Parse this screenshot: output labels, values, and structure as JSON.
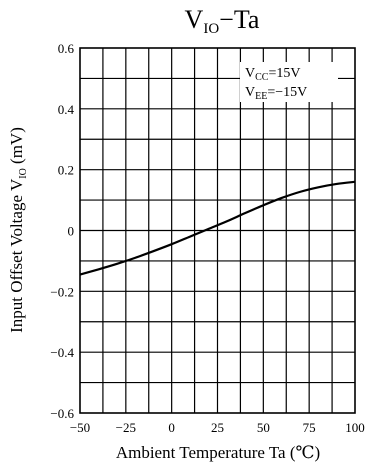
{
  "chart_data": {
    "type": "line",
    "title": {
      "main": "V",
      "sub": "IO",
      "rest": "−Ta"
    },
    "xlabel": "Ambient Temperature  Ta  (℃)",
    "ylabel": {
      "main": "Input Offset Voltage  V",
      "sub": "IO",
      "rest": "  (mV)"
    },
    "xlim": [
      -50,
      100
    ],
    "ylim": [
      -0.6,
      0.6
    ],
    "x_ticks": [
      -50,
      -25,
      0,
      25,
      50,
      75,
      100
    ],
    "x_tick_labels": [
      "−50",
      "−25",
      "0",
      "25",
      "50",
      "75",
      "100"
    ],
    "y_ticks": [
      0.6,
      0.4,
      0.2,
      0,
      -0.2,
      -0.4,
      -0.6
    ],
    "y_tick_labels": [
      "0.6",
      "0.4",
      "0.2",
      "0",
      "−0.2",
      "−0.4",
      "−0.6"
    ],
    "grid": true,
    "conditions": [
      {
        "main": "V",
        "sub": "CC",
        "rest": "=15V"
      },
      {
        "main": "V",
        "sub": "EE",
        "rest": "=−15V"
      }
    ],
    "series": [
      {
        "x": [
          -50,
          -40,
          -30,
          -20,
          -10,
          0,
          10,
          20,
          30,
          40,
          50,
          60,
          70,
          80,
          90,
          100
        ],
        "y": [
          -0.145,
          -0.128,
          -0.11,
          -0.09,
          -0.068,
          -0.045,
          -0.02,
          0.005,
          0.03,
          0.057,
          0.083,
          0.107,
          0.127,
          0.142,
          0.153,
          0.16
        ]
      }
    ]
  }
}
